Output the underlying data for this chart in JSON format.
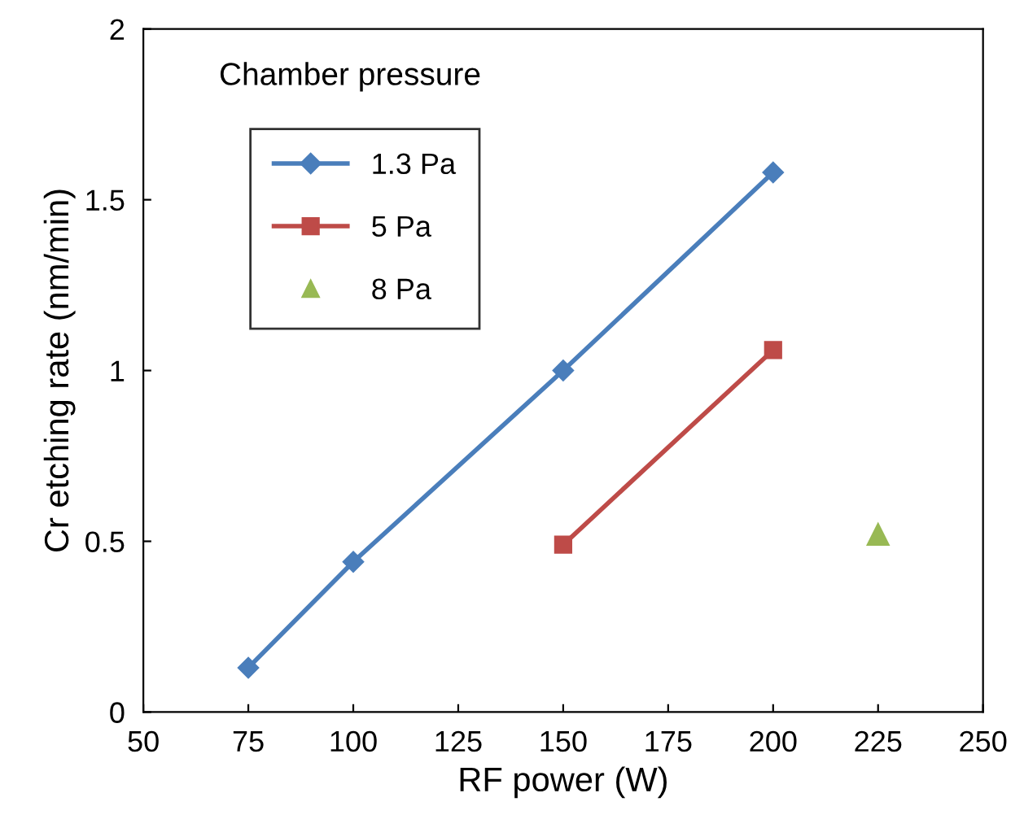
{
  "chart_data": {
    "type": "line",
    "xlabel": "RF power (W)",
    "ylabel": "Cr etching rate (nm/min)",
    "legend_title": "Chamber pressure",
    "legend": "top left",
    "grid": false,
    "xlim": [
      50,
      250
    ],
    "xticks": [
      50,
      75,
      100,
      125,
      150,
      175,
      200,
      225,
      250
    ],
    "ylim": [
      0,
      2
    ],
    "yticks": [
      0,
      0.5,
      1,
      1.5,
      2
    ],
    "series": [
      {
        "name": "1.3 Pa",
        "color": "#4a7ebb",
        "marker": "diamond",
        "x": [
          75,
          100,
          150,
          200
        ],
        "values": [
          0.13,
          0.44,
          1.0,
          1.58
        ]
      },
      {
        "name": "5 Pa",
        "color": "#be4b48",
        "marker": "square",
        "x": [
          150,
          200
        ],
        "values": [
          0.49,
          1.06
        ]
      },
      {
        "name": "8 Pa",
        "color": "#98b954",
        "marker": "triangle",
        "type": "scatter",
        "x": [
          225
        ],
        "values": [
          0.52
        ]
      }
    ]
  }
}
